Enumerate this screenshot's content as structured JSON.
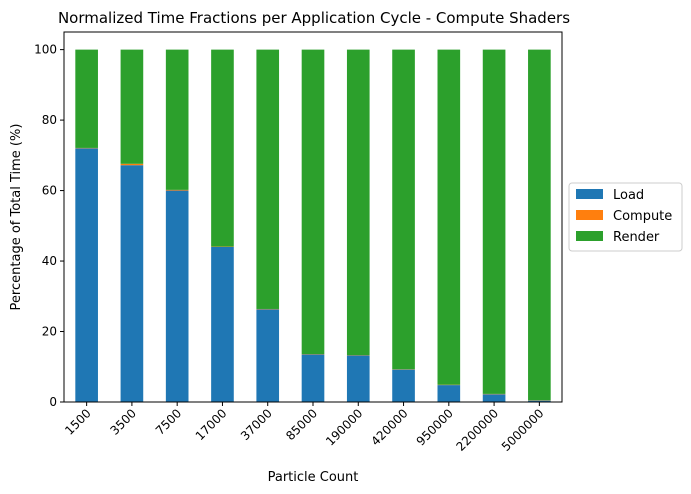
{
  "chart_data": {
    "type": "bar",
    "stacked": true,
    "title": "Normalized Time Fractions per Application Cycle - Compute Shaders",
    "xlabel": "Particle Count",
    "ylabel": "Percentage of Total Time (%)",
    "ylim": [
      0,
      105
    ],
    "yticks": [
      0,
      20,
      40,
      60,
      80,
      100
    ],
    "categories": [
      "1500",
      "3500",
      "7500",
      "17000",
      "37000",
      "85000",
      "190000",
      "420000",
      "950000",
      "2200000",
      "5000000"
    ],
    "series": [
      {
        "name": "Load",
        "color": "#1f77b4",
        "values": [
          72.0,
          67.2,
          60.0,
          44.0,
          26.3,
          13.5,
          13.2,
          9.2,
          4.8,
          2.2,
          0.4
        ]
      },
      {
        "name": "Compute",
        "color": "#ff7f0e",
        "values": [
          0.1,
          0.4,
          0.2,
          0.1,
          0.1,
          0.1,
          0.1,
          0.1,
          0.1,
          0.1,
          0.1
        ]
      },
      {
        "name": "Render",
        "color": "#2ca02c",
        "values": [
          27.9,
          32.4,
          39.8,
          55.9,
          73.6,
          86.4,
          86.7,
          90.7,
          95.1,
          97.7,
          99.5
        ]
      }
    ],
    "grid": false,
    "legend_position": "center-right, outside plot"
  }
}
